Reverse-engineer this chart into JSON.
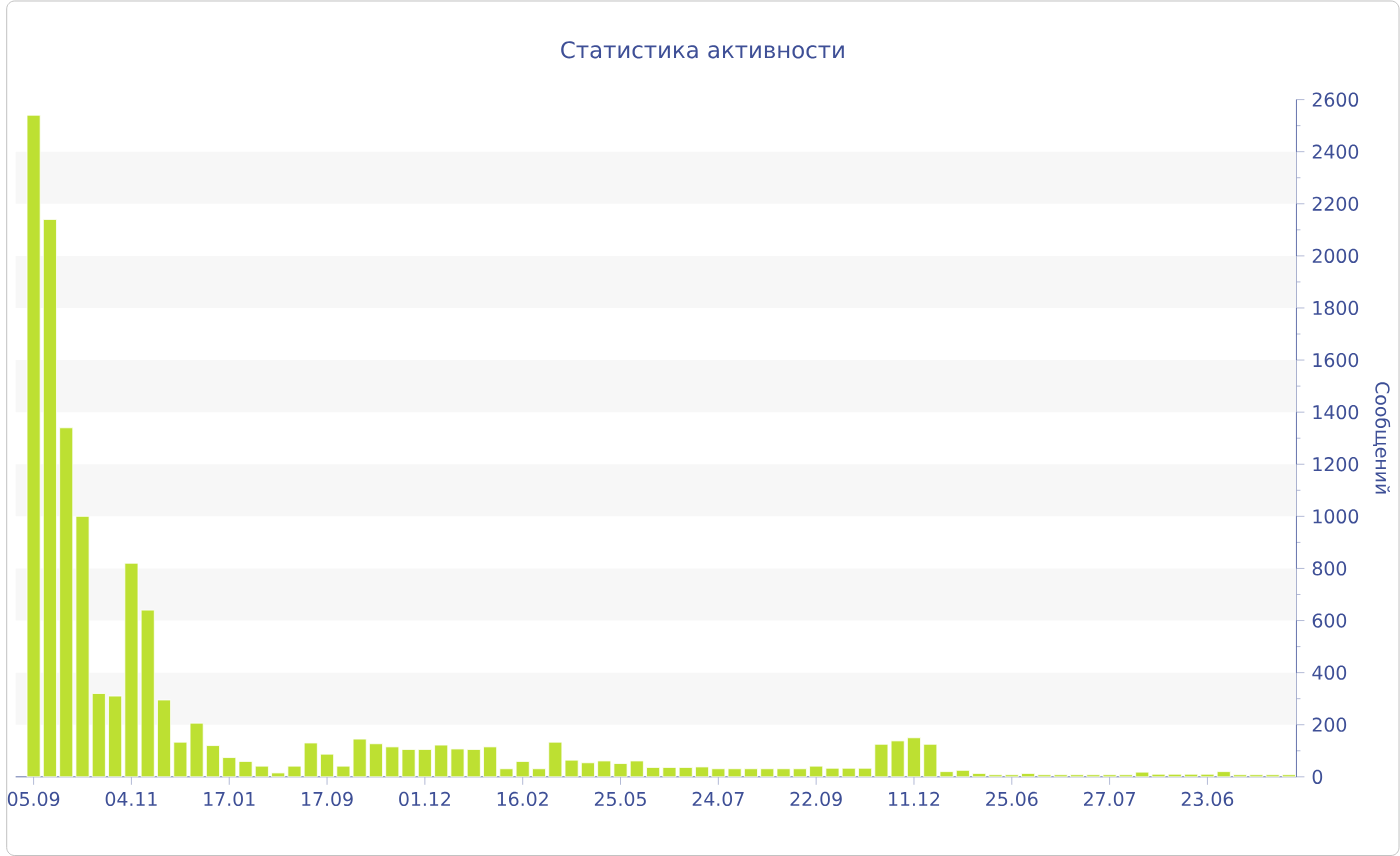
{
  "chart_data": {
    "type": "bar",
    "title": "Статистика активности",
    "ylabel": "Сообщений",
    "categories": [
      "05.09",
      null,
      null,
      null,
      null,
      null,
      "04.11",
      null,
      null,
      null,
      null,
      null,
      "17.01",
      null,
      null,
      null,
      null,
      null,
      "17.09",
      null,
      null,
      null,
      null,
      null,
      "01.12",
      null,
      null,
      null,
      null,
      null,
      "16.02",
      null,
      null,
      null,
      null,
      null,
      "25.05",
      null,
      null,
      null,
      null,
      null,
      "24.07",
      null,
      null,
      null,
      null,
      null,
      "22.09",
      null,
      null,
      null,
      null,
      null,
      "11.12",
      null,
      null,
      null,
      null,
      null,
      "25.06",
      null,
      null,
      null,
      null,
      null,
      "27.07",
      null,
      null,
      null,
      null,
      null,
      "23.06",
      null,
      null,
      null,
      null,
      null
    ],
    "values": [
      2540,
      2140,
      1340,
      1000,
      320,
      310,
      820,
      640,
      295,
      133,
      206,
      120,
      74,
      59,
      41,
      15,
      41,
      130,
      87,
      41,
      145,
      127,
      115,
      105,
      105,
      122,
      107,
      105,
      115,
      31,
      59,
      31,
      133,
      64,
      54,
      61,
      51,
      61,
      36,
      36,
      36,
      38,
      31,
      31,
      31,
      31,
      31,
      31,
      41,
      33,
      33,
      33,
      125,
      138,
      150,
      125,
      20,
      25,
      13,
      8,
      8,
      13,
      8,
      8,
      8,
      8,
      8,
      8,
      18,
      10,
      10,
      10,
      10,
      20,
      8,
      8,
      8,
      8
    ],
    "color": "#bde032",
    "ylim": [
      0,
      2600
    ],
    "yticks": [
      0,
      200,
      400,
      600,
      800,
      1000,
      1200,
      1400,
      1600,
      1800,
      2000,
      2200,
      2400,
      2600
    ],
    "bands": [
      {
        "axis": "y",
        "from": 200,
        "to": 400,
        "color": "#f7f7f7"
      },
      {
        "axis": "y",
        "from": 600,
        "to": 800,
        "color": "#f7f7f7"
      },
      {
        "axis": "y",
        "from": 1000,
        "to": 1200,
        "color": "#f7f7f7"
      },
      {
        "axis": "y",
        "from": 1400,
        "to": 1600,
        "color": "#f7f7f7"
      },
      {
        "axis": "y",
        "from": 1800,
        "to": 2000,
        "color": "#f7f7f7"
      },
      {
        "axis": "y",
        "from": 2200,
        "to": 2400,
        "color": "#f7f7f7"
      }
    ]
  }
}
